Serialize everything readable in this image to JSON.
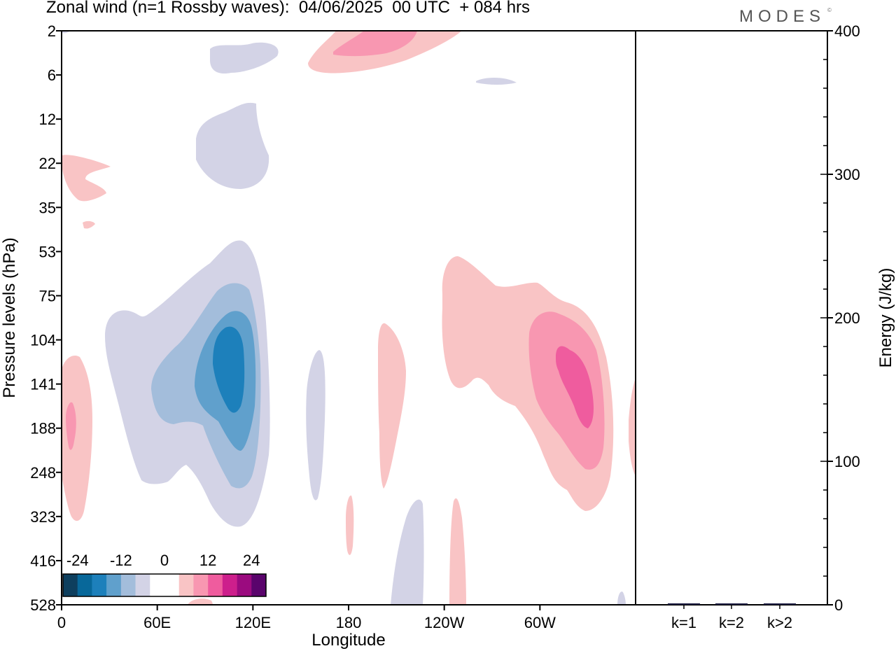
{
  "title": "Zonal wind (n=1 Rossby waves):  04/06/2025  00 UTC  + 084 hrs",
  "brand": "MODES",
  "brand_mark": "©",
  "colors": {
    "n24": "#0e3f5e",
    "n20": "#08689a",
    "n16": "#1d80bb",
    "n12": "#60a0cc",
    "n8": "#a3bddb",
    "n4": "#d3d3e6",
    "p4": "#f9c4c5",
    "p8": "#f897b1",
    "p12": "#ef5c9e",
    "p16": "#cd1f8c",
    "p20": "#9b0b7f",
    "p24": "#5a046c"
  },
  "chart_data": [
    {
      "type": "heatmap",
      "xlabel": "Longitude",
      "ylabel": "Pressure levels (hPa)",
      "x_ticks": [
        "0",
        "60E",
        "120E",
        "180",
        "120W",
        "60W"
      ],
      "x_tick_values": [
        0,
        60,
        120,
        180,
        240,
        300
      ],
      "xlim": [
        0,
        360
      ],
      "y_ticks": [
        "2",
        "6",
        "12",
        "22",
        "35",
        "53",
        "75",
        "104",
        "141",
        "188",
        "248",
        "323",
        "416",
        "528"
      ],
      "colorbar": {
        "tick_labels": [
          "-24",
          "-12",
          "0",
          "12",
          "24"
        ],
        "levels": [
          -24,
          -20,
          -16,
          -12,
          -8,
          -4,
          0,
          4,
          8,
          12,
          16,
          20,
          24
        ]
      },
      "features": [
        {
          "sign": "negative",
          "center_lon": 105,
          "center_hpa": 141,
          "max_level": -16
        },
        {
          "sign": "positive",
          "center_lon": 330,
          "center_hpa": 141,
          "max_level": 12
        },
        {
          "sign": "positive",
          "center_lon": 5,
          "center_hpa": 188,
          "max_level": 8
        },
        {
          "sign": "positive",
          "center_lon": 200,
          "center_hpa": 2,
          "max_level": 8
        },
        {
          "sign": "negative",
          "center_lon": 100,
          "center_hpa": 16,
          "max_level": -4
        },
        {
          "sign": "negative",
          "center_lon": 110,
          "center_hpa": 4,
          "max_level": -4
        }
      ]
    },
    {
      "type": "bar",
      "categories": [
        "k=1",
        "k=2",
        "k>2"
      ],
      "values": [
        1,
        0.5,
        0.7
      ],
      "ylabel": "Energy (J/kg)",
      "ylim": [
        0,
        400
      ],
      "y_ticks": [
        "0",
        "100",
        "200",
        "300",
        "400"
      ],
      "y_tick_values": [
        0,
        100,
        200,
        300,
        400
      ],
      "bar_color": "#1a1a40"
    }
  ]
}
